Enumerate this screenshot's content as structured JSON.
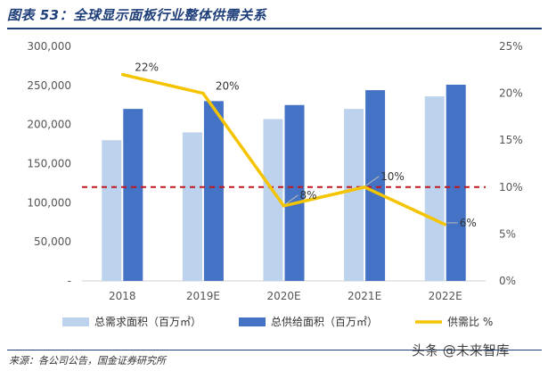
{
  "figure": {
    "title": "图表 53：全球显示面板行业整体供需关系",
    "source": "来源：各公司公告，国金证券研究所",
    "watermark": "头条 @未来智库"
  },
  "colors": {
    "demand": "#bdd2ec",
    "supply": "#4472c4",
    "ratio": "#f5c400",
    "reference": "#c0171f",
    "title": "#1f3f7a"
  },
  "chart_data": {
    "type": "bar",
    "categories": [
      "2018",
      "2019E",
      "2020E",
      "2021E",
      "2022E"
    ],
    "series": [
      {
        "name": "总需求面积（百万㎡）",
        "type": "bar",
        "axis": "left",
        "values": [
          180000,
          190000,
          207000,
          220000,
          236000
        ]
      },
      {
        "name": "总供给面积（百万㎡）",
        "type": "bar",
        "axis": "left",
        "values": [
          220000,
          230000,
          225000,
          244000,
          251000
        ]
      },
      {
        "name": "供需比 %",
        "type": "line",
        "axis": "right",
        "values": [
          22,
          20,
          8,
          10,
          6
        ],
        "labels": [
          "22%",
          "20%",
          "8%",
          "10%",
          "6%"
        ]
      }
    ],
    "reference_line": {
      "axis": "right",
      "value": 10,
      "style": "dashed"
    },
    "y_left": {
      "lim": [
        0,
        300000
      ],
      "ticks": [
        "-",
        "50,000",
        "100,000",
        "150,000",
        "200,000",
        "250,000",
        "300,000"
      ]
    },
    "y_right": {
      "lim": [
        0,
        25
      ],
      "ticks": [
        "0%",
        "5%",
        "10%",
        "15%",
        "20%",
        "25%"
      ]
    },
    "legend": {
      "position": "bottom"
    },
    "grid": false
  }
}
